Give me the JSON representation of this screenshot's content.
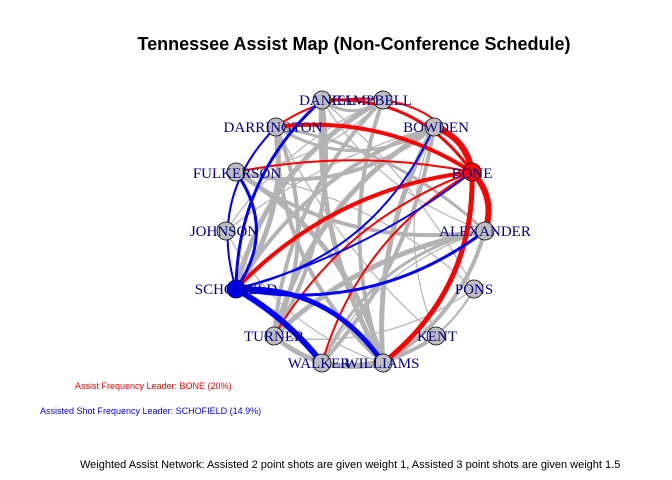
{
  "title": "Tennessee Assist Map (Non-Conference Schedule)",
  "nodes": [
    {
      "id": "DANIEL",
      "label": "DANIEL"
    },
    {
      "id": "CAMPBELL",
      "label": "CAMPBELL"
    },
    {
      "id": "DARRINGTON",
      "label": "DARRINGTON"
    },
    {
      "id": "BOWDEN",
      "label": "BOWDEN"
    },
    {
      "id": "FULKERSON",
      "label": "FULKERSON"
    },
    {
      "id": "BONE",
      "label": "BONE"
    },
    {
      "id": "JOHNSON",
      "label": "JOHNSON"
    },
    {
      "id": "ALEXANDER",
      "label": "ALEXANDER"
    },
    {
      "id": "SCHOFIELD",
      "label": "SCHOFIELD"
    },
    {
      "id": "PONS",
      "label": "PONS"
    },
    {
      "id": "TURNER",
      "label": "TURNER"
    },
    {
      "id": "KENT",
      "label": "KENT"
    },
    {
      "id": "WALKER",
      "label": "WALKER"
    },
    {
      "id": "WILLIAMS",
      "label": "WILLIAMS"
    }
  ],
  "highlight": {
    "assist_leader": "BONE",
    "shot_leader": "SCHOFIELD"
  },
  "colors": {
    "assist_leader": "#FF0000",
    "shot_leader": "#0000FF",
    "edge": "#B3B3B3",
    "node_fill": "#BEBEBE",
    "label": "#00008B"
  },
  "notes": {
    "assist_leader": "Assist Frequency Leader: BONE (20%)",
    "shot_leader": "Assisted Shot Frequency Leader: SCHOFIELD (14.9%)"
  },
  "caption": "Weighted Assist Network: Assisted 2 point shots are given weight 1, Assisted 3 point shots are given weight 1.5"
}
